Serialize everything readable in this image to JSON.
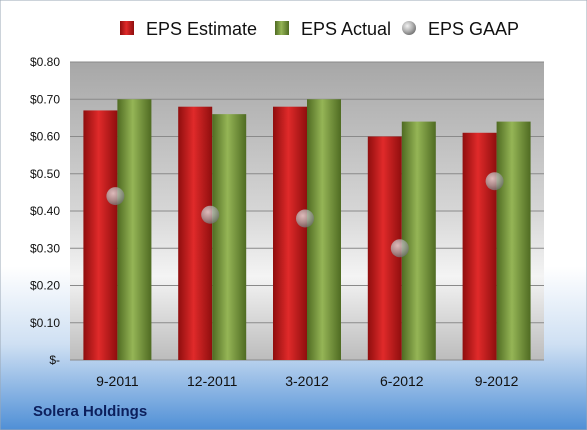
{
  "company": "Solera Holdings",
  "colors": {
    "estimate": "#cc1c1c",
    "actual": "#7a9a3a",
    "gaap": "#a9a9a9"
  },
  "chart_data": {
    "type": "bar",
    "categories": [
      "9-2011",
      "12-2011",
      "3-2012",
      "6-2012",
      "9-2012"
    ],
    "series": [
      {
        "name": "EPS Estimate",
        "kind": "bar",
        "values": [
          0.67,
          0.68,
          0.68,
          0.6,
          0.61
        ]
      },
      {
        "name": "EPS Actual",
        "kind": "bar",
        "values": [
          0.7,
          0.66,
          0.7,
          0.64,
          0.64
        ]
      },
      {
        "name": "EPS GAAP",
        "kind": "point",
        "values": [
          0.44,
          0.39,
          0.38,
          0.3,
          0.48
        ]
      }
    ],
    "y_ticks": [
      0,
      0.1,
      0.2,
      0.3,
      0.4,
      0.5,
      0.6,
      0.7,
      0.8
    ],
    "y_tick_labels": [
      "$-",
      "$0.10",
      "$0.20",
      "$0.30",
      "$0.40",
      "$0.50",
      "$0.60",
      "$0.70",
      "$0.80"
    ],
    "ylim": [
      0,
      0.8
    ],
    "grid": true,
    "legend_position": "top"
  }
}
